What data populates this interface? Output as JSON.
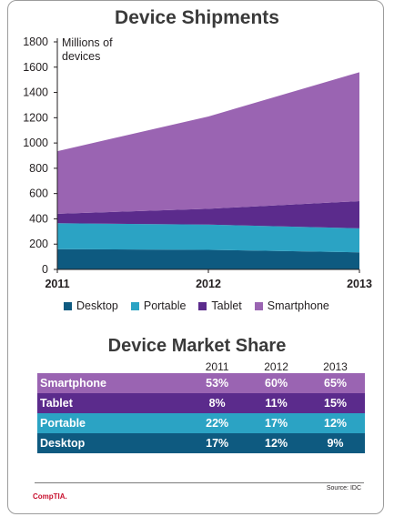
{
  "colors": {
    "desktop": "#0e5a80",
    "portable": "#2ba3c4",
    "tablet": "#5b2b8c",
    "smartphone": "#9a64b2"
  },
  "chart_data": [
    {
      "type": "area",
      "title": "Device Shipments",
      "ylabel": "Millions of devices",
      "categories": [
        "2011",
        "2012",
        "2013"
      ],
      "ylim": [
        0,
        1800
      ],
      "yticks": [
        0,
        200,
        400,
        600,
        800,
        1000,
        1200,
        1400,
        1600,
        1800
      ],
      "stacked": true,
      "series": [
        {
          "name": "Desktop",
          "values": [
            160,
            155,
            135
          ]
        },
        {
          "name": "Portable",
          "values": [
            205,
            200,
            190
          ]
        },
        {
          "name": "Tablet",
          "values": [
            75,
            125,
            215
          ]
        },
        {
          "name": "Smartphone",
          "values": [
            495,
            730,
            1020
          ]
        }
      ],
      "legend": "bottom"
    },
    {
      "type": "table",
      "title": "Device Market Share",
      "columns": [
        "2011",
        "2012",
        "2013"
      ],
      "rows": [
        {
          "label": "Smartphone",
          "values": [
            "53%",
            "60%",
            "65%"
          ]
        },
        {
          "label": "Tablet",
          "values": [
            "8%",
            "11%",
            "15%"
          ]
        },
        {
          "label": "Portable",
          "values": [
            "22%",
            "17%",
            "12%"
          ]
        },
        {
          "label": "Desktop",
          "values": [
            "17%",
            "12%",
            "9%"
          ]
        }
      ]
    }
  ],
  "footer": {
    "source": "Source: IDC",
    "logo": "CompTIA."
  }
}
